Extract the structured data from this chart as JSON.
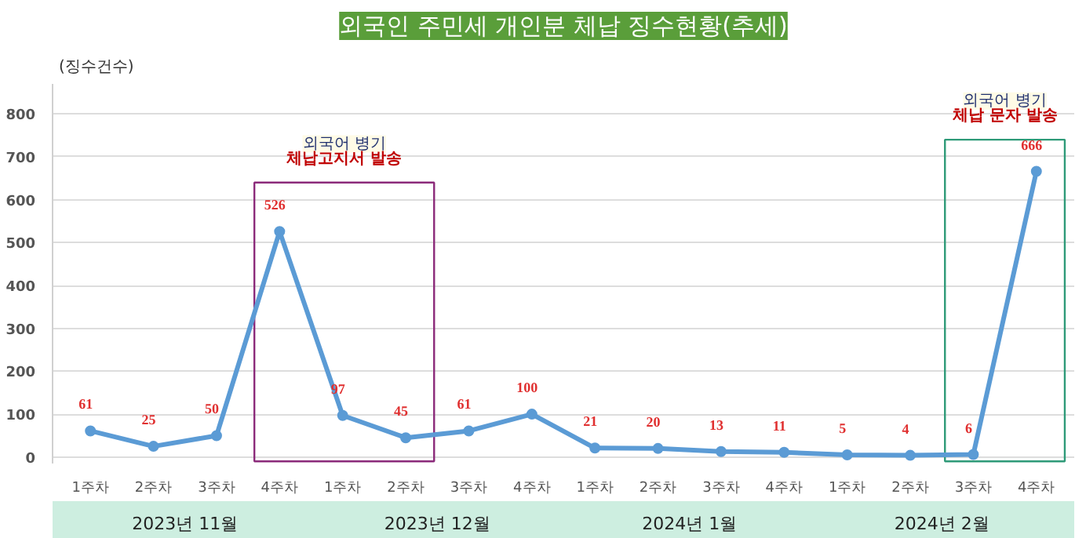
{
  "chart_data": {
    "type": "line",
    "title": "외국인 주민세 개인분 체납 징수현황(추세)",
    "ylabel": "(징수건수)",
    "categories": [
      "1주차",
      "2주차",
      "3주차",
      "4주차",
      "1주차",
      "2주차",
      "3주차",
      "4주차",
      "1주차",
      "2주차",
      "3주차",
      "4주차",
      "1주차",
      "2주차",
      "3주차",
      "4주차"
    ],
    "series": [
      {
        "color": "#5b9bd5",
        "values": [
          61,
          25,
          50,
          526,
          97,
          45,
          61,
          100,
          21,
          20,
          13,
          11,
          5,
          4,
          6,
          666
        ]
      }
    ],
    "data_labels": true,
    "marker": "circle",
    "line_style": "solid",
    "grid": "y",
    "ylim": [
      -15,
      870
    ],
    "yticks": [
      0,
      100,
      200,
      300,
      400,
      500,
      600,
      700,
      800
    ],
    "annotations": [
      "2023년 11월",
      "2023년 12월",
      "2024년 1월",
      "2024년 2월",
      "외국어 병기\n체납고지서 발송",
      "외국어 병기\n체납 문자 발송"
    ]
  }
}
